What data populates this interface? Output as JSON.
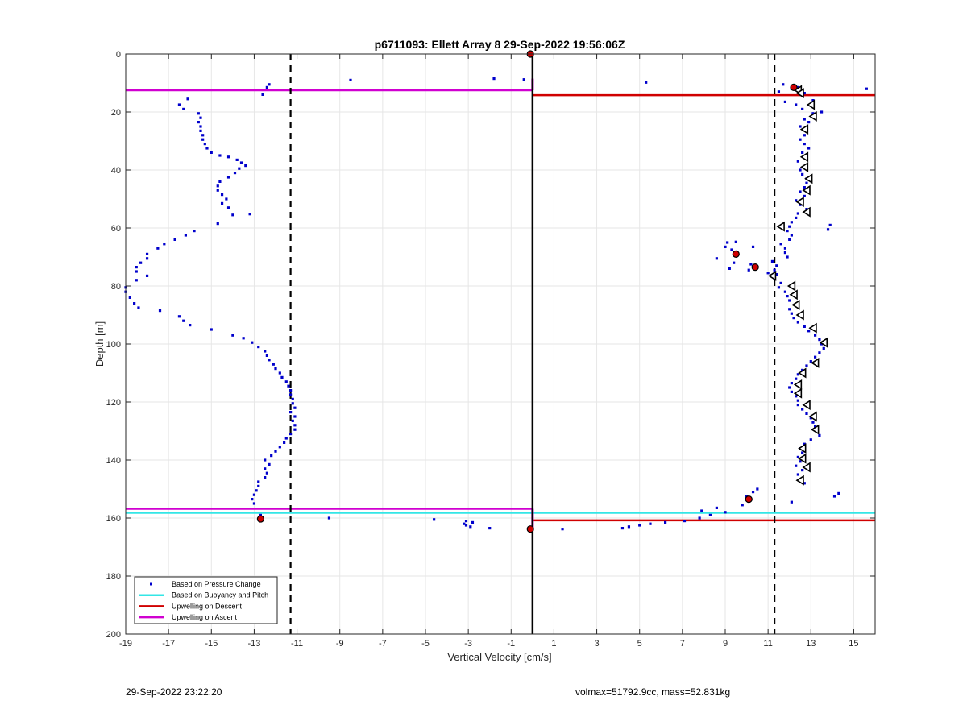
{
  "chart_data": {
    "type": "scatter",
    "title": "p6711093: Ellett Array 8 29-Sep-2022 19:56:06Z",
    "xlabel": "Vertical Velocity [cm/s]",
    "ylabel": "Depth [m]",
    "xlim": [
      -19,
      16
    ],
    "ylim": [
      0,
      200
    ],
    "y_reversed": true,
    "grid": true,
    "xticks": [
      -19,
      -17,
      -15,
      -13,
      -11,
      -9,
      -7,
      -5,
      -3,
      -1,
      1,
      3,
      5,
      7,
      9,
      11,
      13,
      15
    ],
    "yticks": [
      0,
      20,
      40,
      60,
      80,
      100,
      120,
      140,
      160,
      180,
      200
    ],
    "legend_position": "bottom-left",
    "legend": [
      {
        "label": "Based on Pressure Change",
        "color": "#0000cc",
        "kind": "marker"
      },
      {
        "label": "Based on Buoyancy and Pitch",
        "color": "#33e6e6",
        "kind": "line"
      },
      {
        "label": "Upwelling on Descent",
        "color": "#d00000",
        "kind": "line"
      },
      {
        "label": "Upwelling on Ascent",
        "color": "#d000d0",
        "kind": "line"
      }
    ],
    "series": [
      {
        "name": "Based on Pressure Change",
        "color": "#0000cc",
        "points": [
          [
            -12.3,
            10.5
          ],
          [
            -12.4,
            11.5
          ],
          [
            -8.5,
            9
          ],
          [
            -1.8,
            8.5
          ],
          [
            -0.4,
            8.8
          ],
          [
            5.3,
            9.8
          ],
          [
            11.7,
            10.5
          ],
          [
            15.6,
            12
          ],
          [
            -12.6,
            14
          ],
          [
            -16.1,
            15.5
          ],
          [
            -16.5,
            17.5
          ],
          [
            -16.3,
            19
          ],
          [
            -15.6,
            20.5
          ],
          [
            -15.5,
            22
          ],
          [
            -15.6,
            23.5
          ],
          [
            -15.5,
            25
          ],
          [
            -15.5,
            26.5
          ],
          [
            -15.4,
            28
          ],
          [
            -15.4,
            29.5
          ],
          [
            -15.3,
            31
          ],
          [
            -15.2,
            32.5
          ],
          [
            -15,
            34
          ],
          [
            -14.6,
            35
          ],
          [
            -14.2,
            35.5
          ],
          [
            -13.8,
            36.5
          ],
          [
            -13.6,
            37.5
          ],
          [
            -13.4,
            38.5
          ],
          [
            -13.7,
            39.5
          ],
          [
            -13.9,
            41
          ],
          [
            -14.2,
            42.5
          ],
          [
            -14.6,
            44
          ],
          [
            -14.7,
            45.5
          ],
          [
            -14.7,
            47
          ],
          [
            -14.5,
            48.5
          ],
          [
            -14.3,
            50
          ],
          [
            -14.5,
            51.5
          ],
          [
            -14.2,
            53
          ],
          [
            -14,
            55.5
          ],
          [
            -13.2,
            55.2
          ],
          [
            -14.7,
            58.5
          ],
          [
            -15.8,
            61
          ],
          [
            -16.2,
            62.5
          ],
          [
            -16.7,
            64
          ],
          [
            -17.2,
            65.5
          ],
          [
            -17.5,
            67
          ],
          [
            -18,
            69
          ],
          [
            -18,
            70.5
          ],
          [
            -18.3,
            72
          ],
          [
            -18.5,
            73.5
          ],
          [
            -18.5,
            75
          ],
          [
            -18,
            76.5
          ],
          [
            -18.5,
            78
          ],
          [
            -19,
            80.5
          ],
          [
            -19,
            82
          ],
          [
            -18.8,
            84
          ],
          [
            -18.6,
            86
          ],
          [
            -18.4,
            87.5
          ],
          [
            -17.4,
            88.5
          ],
          [
            -16.5,
            90.5
          ],
          [
            -16.3,
            92
          ],
          [
            -16,
            93.5
          ],
          [
            -15,
            95
          ],
          [
            -14,
            97
          ],
          [
            -13.5,
            98
          ],
          [
            -13.1,
            99.5
          ],
          [
            -12.8,
            101
          ],
          [
            -12.5,
            102.5
          ],
          [
            -12.4,
            104
          ],
          [
            -12.3,
            105.5
          ],
          [
            -12.1,
            107
          ],
          [
            -12,
            108.5
          ],
          [
            -11.8,
            110
          ],
          [
            -11.7,
            111.5
          ],
          [
            -11.5,
            113
          ],
          [
            -11.4,
            114.5
          ],
          [
            -11.3,
            116
          ],
          [
            -11.3,
            117.5
          ],
          [
            -11.2,
            119
          ],
          [
            -11.2,
            120.5
          ],
          [
            -11.1,
            122
          ],
          [
            -11.3,
            123.5
          ],
          [
            -11.1,
            125
          ],
          [
            -11.2,
            126.5
          ],
          [
            -11.1,
            128
          ],
          [
            -11.1,
            129.5
          ],
          [
            -11.3,
            131
          ],
          [
            -11.5,
            132.5
          ],
          [
            -11.6,
            134
          ],
          [
            -11.8,
            135.5
          ],
          [
            -12,
            137
          ],
          [
            -12.2,
            138.5
          ],
          [
            -12.5,
            140
          ],
          [
            -12.3,
            141.5
          ],
          [
            -12.5,
            143
          ],
          [
            -12.4,
            144.5
          ],
          [
            -12.5,
            146
          ],
          [
            -12.8,
            147.5
          ],
          [
            -12.8,
            149
          ],
          [
            -12.9,
            150.5
          ],
          [
            -13,
            152
          ],
          [
            -13.1,
            153.5
          ],
          [
            -13,
            155
          ],
          [
            -12.7,
            159
          ],
          [
            -12.8,
            160.5
          ],
          [
            -9.5,
            160
          ],
          [
            -4.6,
            160.5
          ],
          [
            -3.1,
            161
          ],
          [
            -3.2,
            162
          ],
          [
            -2.8,
            161.5
          ],
          [
            -3.1,
            162.5
          ],
          [
            -2.9,
            163
          ],
          [
            -2,
            163.5
          ],
          [
            1.4,
            163.8
          ],
          [
            4.2,
            163.5
          ],
          [
            4.5,
            163
          ],
          [
            5,
            162.5
          ],
          [
            5.5,
            162
          ],
          [
            6.2,
            161.5
          ],
          [
            7.1,
            161
          ],
          [
            7.8,
            160
          ],
          [
            8.3,
            159
          ],
          [
            7.9,
            157.5
          ],
          [
            9,
            158
          ],
          [
            8.6,
            156.5
          ],
          [
            9.8,
            155.5
          ],
          [
            10,
            152.5
          ],
          [
            10.3,
            151
          ],
          [
            10.5,
            150
          ],
          [
            12.1,
            154.5
          ],
          [
            14.1,
            152.5
          ],
          [
            14.3,
            151.5
          ],
          [
            11.5,
            13
          ],
          [
            12.1,
            12
          ],
          [
            12.4,
            11.5
          ],
          [
            12.7,
            13.5
          ],
          [
            13.1,
            16
          ],
          [
            11.8,
            16.5
          ],
          [
            12.3,
            17.5
          ],
          [
            12.6,
            19
          ],
          [
            13.1,
            20.5
          ],
          [
            13.5,
            20
          ],
          [
            12.7,
            22.5
          ],
          [
            12.9,
            23.5
          ],
          [
            12.5,
            25
          ],
          [
            12.8,
            26.5
          ],
          [
            12.7,
            28
          ],
          [
            12.5,
            29.5
          ],
          [
            12.7,
            31
          ],
          [
            12.9,
            32.5
          ],
          [
            12.6,
            34
          ],
          [
            12.7,
            35.5
          ],
          [
            12.4,
            37
          ],
          [
            12.8,
            38.5
          ],
          [
            12.5,
            40
          ],
          [
            12.6,
            41.5
          ],
          [
            12.8,
            43
          ],
          [
            12.8,
            44.5
          ],
          [
            12.7,
            46
          ],
          [
            12.5,
            47.5
          ],
          [
            12.7,
            49
          ],
          [
            12.3,
            50.5
          ],
          [
            12.5,
            52
          ],
          [
            12.8,
            53.5
          ],
          [
            12.4,
            55
          ],
          [
            12.3,
            56.5
          ],
          [
            12.1,
            58
          ],
          [
            12,
            59.5
          ],
          [
            13.9,
            59
          ],
          [
            13.8,
            60.5
          ],
          [
            11.9,
            61
          ],
          [
            12.1,
            62.5
          ],
          [
            12,
            64
          ],
          [
            11.6,
            65.5
          ],
          [
            11.8,
            67
          ],
          [
            11.8,
            68.5
          ],
          [
            11.9,
            70
          ],
          [
            11.2,
            71.5
          ],
          [
            11.4,
            73
          ],
          [
            11.3,
            74.5
          ],
          [
            11.4,
            76
          ],
          [
            11.3,
            77.5
          ],
          [
            11.6,
            79
          ],
          [
            11.5,
            80.5
          ],
          [
            11.8,
            82
          ],
          [
            11.9,
            83.5
          ],
          [
            12,
            85
          ],
          [
            12.3,
            86.5
          ],
          [
            12,
            88
          ],
          [
            12.1,
            89.5
          ],
          [
            12.2,
            91
          ],
          [
            12.4,
            92.5
          ],
          [
            12.7,
            94
          ],
          [
            12.9,
            95.5
          ],
          [
            13.2,
            97
          ],
          [
            13.4,
            98.5
          ],
          [
            13.5,
            100
          ],
          [
            13.6,
            101.5
          ],
          [
            13.4,
            103
          ],
          [
            13.2,
            104.5
          ],
          [
            13,
            106
          ],
          [
            12.8,
            107.5
          ],
          [
            12.6,
            109
          ],
          [
            12.4,
            110.5
          ],
          [
            12.3,
            112
          ],
          [
            12.1,
            113.5
          ],
          [
            12,
            115
          ],
          [
            12.1,
            116.5
          ],
          [
            12.3,
            118
          ],
          [
            12.4,
            119.5
          ],
          [
            12.4,
            121
          ],
          [
            12.6,
            122.5
          ],
          [
            12.8,
            124
          ],
          [
            13,
            125.5
          ],
          [
            13.1,
            127
          ],
          [
            13.2,
            128.5
          ],
          [
            13.3,
            130
          ],
          [
            13.4,
            131.5
          ],
          [
            13,
            133
          ],
          [
            12.7,
            134.5
          ],
          [
            12.5,
            136
          ],
          [
            12.6,
            137.5
          ],
          [
            12.4,
            139
          ],
          [
            12.5,
            140.5
          ],
          [
            12.3,
            142
          ],
          [
            12.6,
            143.5
          ],
          [
            12.4,
            145
          ],
          [
            12.6,
            146.5
          ],
          [
            12.7,
            148
          ],
          [
            9.1,
            65
          ],
          [
            9.5,
            64.8
          ],
          [
            9,
            66.5
          ],
          [
            10.3,
            66.5
          ],
          [
            9.3,
            67.5
          ],
          [
            8.6,
            70.5
          ],
          [
            9.4,
            72
          ],
          [
            10.2,
            72.5
          ],
          [
            9.2,
            74
          ],
          [
            10.1,
            74.5
          ],
          [
            11,
            75.5
          ]
        ]
      }
    ],
    "triangles": {
      "color": "#000000",
      "points": [
        [
          12.4,
          12.5
        ],
        [
          12.5,
          13.5
        ],
        [
          13,
          17.5
        ],
        [
          13.1,
          21.5
        ],
        [
          12.7,
          26
        ],
        [
          12.7,
          35.5
        ],
        [
          12.7,
          39
        ],
        [
          12.9,
          43
        ],
        [
          12.8,
          47
        ],
        [
          12.5,
          51
        ],
        [
          12.8,
          54.5
        ],
        [
          11.6,
          59.5
        ],
        [
          12.1,
          80
        ],
        [
          12.2,
          83
        ],
        [
          12.3,
          86.5
        ],
        [
          12.5,
          90
        ],
        [
          13.1,
          94.5
        ],
        [
          13.6,
          99.5
        ],
        [
          13.2,
          106.5
        ],
        [
          12.6,
          110
        ],
        [
          12.4,
          114
        ],
        [
          12.4,
          117
        ],
        [
          12.8,
          121
        ],
        [
          13.1,
          125
        ],
        [
          13.2,
          129.5
        ],
        [
          12.6,
          136
        ],
        [
          12.6,
          139.5
        ],
        [
          12.8,
          142.5
        ],
        [
          12.5,
          147
        ],
        [
          11.2,
          76.5
        ]
      ]
    },
    "red_stars": [
      [
        -0.1,
        0
      ],
      [
        12.2,
        11.5
      ],
      [
        9.5,
        69
      ],
      [
        10.4,
        73.5
      ],
      [
        10.1,
        153.5
      ],
      [
        -12.7,
        160.3
      ],
      [
        -0.1,
        163.8
      ]
    ],
    "reference_lines": {
      "dashed_x": [
        -11.3,
        11.3
      ],
      "solid_x": [
        0
      ]
    },
    "horizontal_lines": [
      {
        "label": "Upwelling on Ascent",
        "color": "#d000d0",
        "y": 12.5,
        "from": -19,
        "to": 0
      },
      {
        "label": "Upwelling on Ascent",
        "color": "#d000d0",
        "y": 156.8,
        "from": -19,
        "to": 0
      },
      {
        "label": "Upwelling on Descent",
        "color": "#d00000",
        "y": 14.2,
        "from": 0,
        "to": 16
      },
      {
        "label": "Upwelling on Descent",
        "color": "#d00000",
        "y": 160.8,
        "from": 0,
        "to": 16
      },
      {
        "label": "Based on Buoyancy and Pitch",
        "color": "#33e6e6",
        "y": 158.2,
        "from": -19,
        "to": 16
      }
    ],
    "vertical_segments": [
      {
        "color": "#d000d0",
        "x": 0,
        "y_from": 8.5,
        "y_to": 12.5
      },
      {
        "color": "#d000d0",
        "x": 0,
        "y_from": 156.8,
        "y_to": 163.8
      }
    ]
  },
  "footer": {
    "timestamp": "29-Sep-2022 23:22:20",
    "info": "volmax=51792.9cc, mass=52.831kg"
  }
}
